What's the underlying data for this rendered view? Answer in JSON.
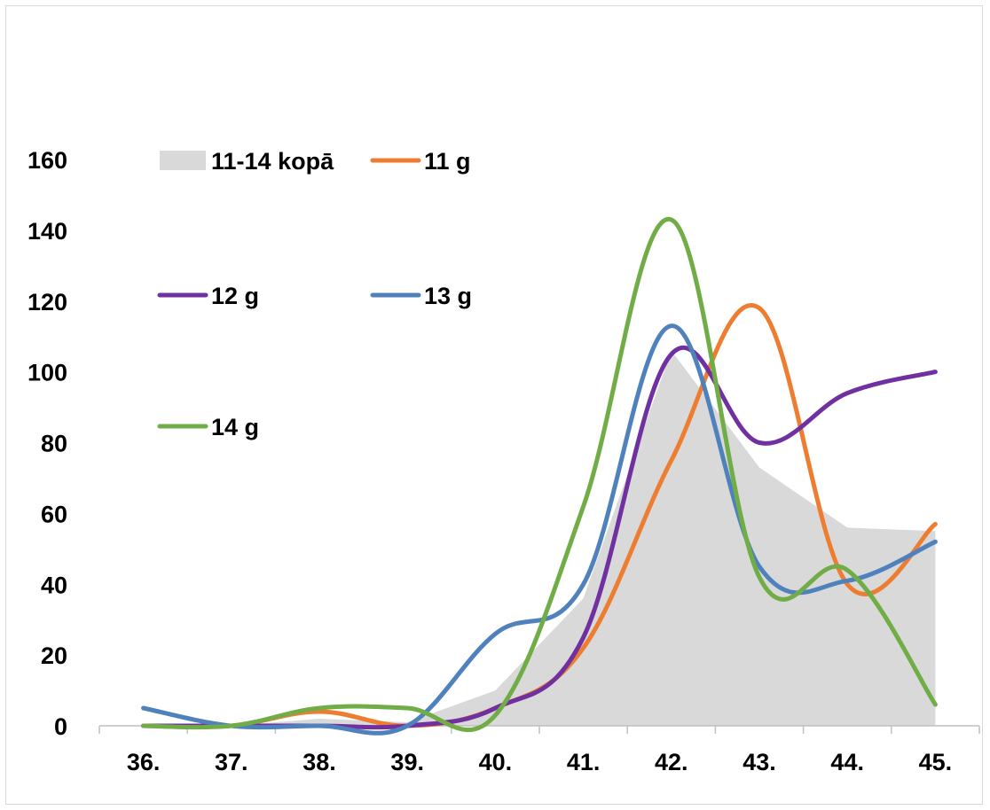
{
  "chart_data": {
    "type": "line",
    "title": "",
    "xlabel": "",
    "ylabel": "",
    "categories": [
      "36.",
      "37.",
      "38.",
      "39.",
      "40.",
      "41.",
      "42.",
      "43.",
      "44.",
      "45."
    ],
    "ylim": [
      0,
      160
    ],
    "yticks": [
      "0",
      "20",
      "40",
      "60",
      "80",
      "100",
      "120",
      "140",
      "160"
    ],
    "grid": false,
    "legend": "top-left",
    "series": [
      {
        "name": "11-14 kopā",
        "kind": "area",
        "color": "#d9d9d9",
        "values": [
          0,
          0,
          2,
          1,
          10,
          36,
          106,
          73,
          56,
          55
        ]
      },
      {
        "name": "11 g",
        "kind": "line",
        "color": "#ed7d31",
        "values": [
          0,
          0,
          4,
          0,
          5,
          22,
          75,
          118,
          40,
          57
        ]
      },
      {
        "name": "12 g",
        "kind": "line",
        "color": "#7030a0",
        "values": [
          0,
          0,
          0,
          0,
          5,
          25,
          105,
          80,
          94,
          100
        ]
      },
      {
        "name": "13 g",
        "kind": "line",
        "color": "#4f81bd",
        "values": [
          5,
          0,
          0,
          0,
          26,
          40,
          113,
          45,
          41,
          52
        ]
      },
      {
        "name": "14 g",
        "kind": "line",
        "color": "#70ad47",
        "values": [
          0,
          0,
          5,
          5,
          3,
          62,
          143,
          42,
          44,
          6
        ]
      }
    ]
  }
}
